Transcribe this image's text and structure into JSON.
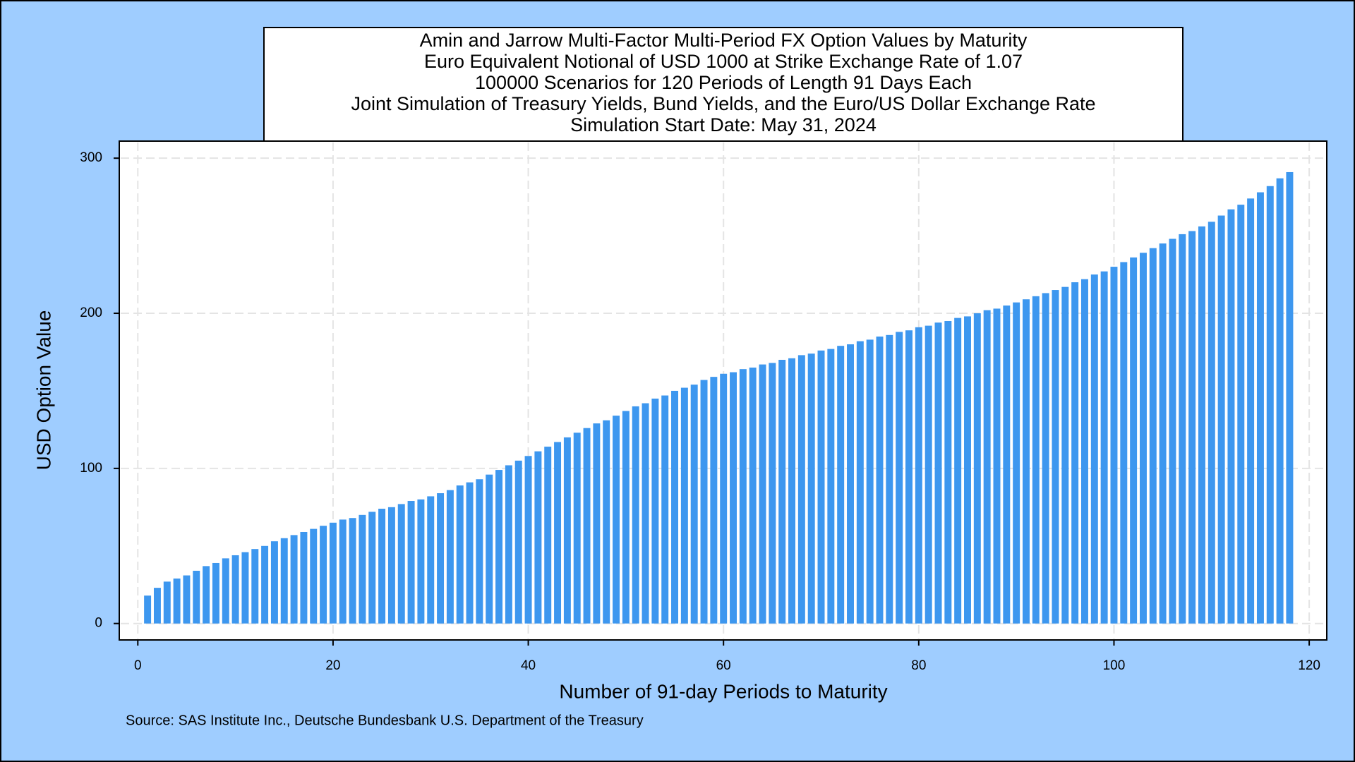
{
  "chart_data": {
    "type": "bar",
    "title": [
      "Amin and Jarrow Multi-Factor Multi-Period FX Option Values by Maturity",
      "Euro Equivalent Notional of USD 1000 at Strike Exchange Rate of 1.07",
      "100000 Scenarios for 120 Periods of Length 91 Days Each",
      "Joint Simulation of Treasury Yields, Bund Yields, and the Euro/US Dollar Exchange Rate",
      "Simulation Start Date: May 31, 2024"
    ],
    "x_label": "Number of 91-day Periods to Maturity",
    "y_label": "USD Option Value",
    "source": "Source: SAS Institute Inc., Deutsche Bundesbank U.S. Department of the Treasury",
    "color": "#3d97ef",
    "grid": true,
    "xlim": [
      -1.9,
      121.8
    ],
    "ylim": [
      -10.6,
      311
    ],
    "xticks": [
      0,
      20,
      40,
      60,
      80,
      100,
      120
    ],
    "yticks": [
      0,
      100,
      200,
      300
    ],
    "x": [
      1,
      2,
      3,
      4,
      5,
      6,
      7,
      8,
      9,
      10,
      11,
      12,
      13,
      14,
      15,
      16,
      17,
      18,
      19,
      20,
      21,
      22,
      23,
      24,
      25,
      26,
      27,
      28,
      29,
      30,
      31,
      32,
      33,
      34,
      35,
      36,
      37,
      38,
      39,
      40,
      41,
      42,
      43,
      44,
      45,
      46,
      47,
      48,
      49,
      50,
      51,
      52,
      53,
      54,
      55,
      56,
      57,
      58,
      59,
      60,
      61,
      62,
      63,
      64,
      65,
      66,
      67,
      68,
      69,
      70,
      71,
      72,
      73,
      74,
      75,
      76,
      77,
      78,
      79,
      80,
      81,
      82,
      83,
      84,
      85,
      86,
      87,
      88,
      89,
      90,
      91,
      92,
      93,
      94,
      95,
      96,
      97,
      98,
      99,
      100,
      101,
      102,
      103,
      104,
      105,
      106,
      107,
      108,
      109,
      110,
      111,
      112,
      113,
      114,
      115,
      116,
      117,
      118
    ],
    "values": [
      18,
      23,
      27,
      29,
      31,
      34,
      37,
      39,
      42,
      44,
      46,
      48,
      50,
      53,
      55,
      57,
      59,
      61,
      63,
      65,
      67,
      68,
      70,
      72,
      74,
      75,
      77,
      79,
      80,
      82,
      84,
      86,
      89,
      91,
      93,
      96,
      99,
      102,
      105,
      108,
      111,
      114,
      117,
      120,
      123,
      126,
      129,
      131,
      134,
      137,
      140,
      142,
      145,
      147,
      150,
      152,
      154,
      157,
      159,
      161,
      162,
      164,
      165,
      167,
      168,
      170,
      171,
      173,
      174,
      176,
      177,
      179,
      180,
      182,
      183,
      185,
      186,
      188,
      189,
      191,
      192,
      194,
      195,
      197,
      198,
      200,
      202,
      203,
      205,
      207,
      209,
      211,
      213,
      215,
      217,
      220,
      222,
      225,
      227,
      230,
      233,
      236,
      239,
      242,
      245,
      248,
      251,
      253,
      256,
      259,
      263,
      267,
      270,
      274,
      278,
      282,
      287,
      291
    ]
  }
}
